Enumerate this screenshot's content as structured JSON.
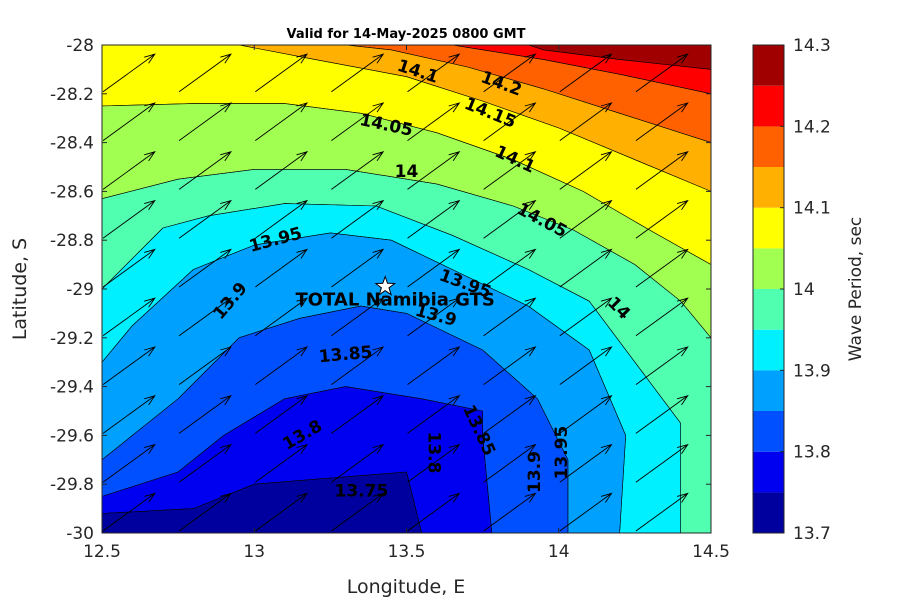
{
  "chart_data": {
    "type": "filled-contour",
    "title": "Valid for 14-May-2025 0800 GMT",
    "xlabel": "Longitude, E",
    "ylabel": "Latitude, S",
    "xlim": [
      12.5,
      14.5
    ],
    "ylim": [
      -30,
      -28
    ],
    "xticks": [
      12.5,
      13,
      13.5,
      14,
      14.5
    ],
    "xtick_labels": [
      "12.5",
      "13",
      "13.5",
      "14",
      "14.5"
    ],
    "yticks": [
      -28,
      -28.2,
      -28.4,
      -28.6,
      -28.8,
      -29,
      -29.2,
      -29.4,
      -29.6,
      -29.8,
      -30
    ],
    "ytick_labels": [
      "-28",
      "-28.2",
      "-28.4",
      "-28.6",
      "-28.8",
      "-29",
      "-29.2",
      "-29.4",
      "-29.6",
      "-29.8",
      "-30"
    ],
    "colorbar": {
      "label": "Wave Period, sec",
      "levels": [
        13.7,
        13.75,
        13.8,
        13.85,
        13.9,
        13.95,
        14,
        14.05,
        14.1,
        14.15,
        14.2,
        14.25,
        14.3
      ],
      "tick_values": [
        13.7,
        13.8,
        13.9,
        14,
        14.1,
        14.2,
        14.3
      ],
      "tick_labels": [
        "13.7",
        "13.8",
        "13.9",
        "14",
        "14.1",
        "14.2",
        "14.3"
      ],
      "colors": [
        "#00009e",
        "#0000f0",
        "#0050ff",
        "#00a0ff",
        "#00f0ff",
        "#50ffb0",
        "#a0ff50",
        "#ffff00",
        "#ffb000",
        "#ff6000",
        "#ff0000",
        "#a00000"
      ]
    },
    "bands": [
      {
        "level": 14.25,
        "color": "#a00000",
        "points": [
          [
            13.9,
            -28
          ],
          [
            14.5,
            -28
          ],
          [
            14.5,
            -28.1
          ],
          [
            14.2,
            -28.06
          ],
          [
            13.95,
            -28.02
          ]
        ]
      },
      {
        "level": 14.2,
        "color": "#ff0000",
        "points": [
          [
            13.65,
            -28
          ],
          [
            13.9,
            -28
          ],
          [
            13.95,
            -28.02
          ],
          [
            14.2,
            -28.06
          ],
          [
            14.5,
            -28.1
          ],
          [
            14.5,
            -28.2
          ],
          [
            14.2,
            -28.12
          ],
          [
            13.95,
            -28.06
          ],
          [
            13.7,
            -28.01
          ]
        ]
      },
      {
        "level": 14.15,
        "color": "#ff6000",
        "points": [
          [
            13.3,
            -28
          ],
          [
            13.65,
            -28
          ],
          [
            13.7,
            -28.01
          ],
          [
            13.95,
            -28.06
          ],
          [
            14.2,
            -28.12
          ],
          [
            14.5,
            -28.2
          ],
          [
            14.5,
            -28.4
          ],
          [
            14.2,
            -28.28
          ],
          [
            13.95,
            -28.18
          ],
          [
            13.7,
            -28.09
          ],
          [
            13.45,
            -28.02
          ]
        ]
      },
      {
        "level": 14.1,
        "color": "#ffb000",
        "points": [
          [
            12.95,
            -28
          ],
          [
            13.3,
            -28
          ],
          [
            13.45,
            -28.02
          ],
          [
            13.7,
            -28.09
          ],
          [
            13.95,
            -28.18
          ],
          [
            14.2,
            -28.28
          ],
          [
            14.5,
            -28.4
          ],
          [
            14.5,
            -28.6
          ],
          [
            14.25,
            -28.47
          ],
          [
            14,
            -28.34
          ],
          [
            13.75,
            -28.23
          ],
          [
            13.5,
            -28.13
          ],
          [
            13.2,
            -28.06
          ]
        ]
      },
      {
        "level": 14.05,
        "color": "#ffff00",
        "points": [
          [
            12.5,
            -28
          ],
          [
            12.95,
            -28
          ],
          [
            13.2,
            -28.06
          ],
          [
            13.5,
            -28.13
          ],
          [
            13.75,
            -28.23
          ],
          [
            14,
            -28.34
          ],
          [
            14.25,
            -28.47
          ],
          [
            14.5,
            -28.6
          ],
          [
            14.5,
            -28.9
          ],
          [
            14.3,
            -28.76
          ],
          [
            14.08,
            -28.6
          ],
          [
            13.85,
            -28.47
          ],
          [
            13.6,
            -28.36
          ],
          [
            13.35,
            -28.28
          ],
          [
            13.1,
            -28.24
          ],
          [
            12.8,
            -28.24
          ],
          [
            12.5,
            -28.25
          ]
        ]
      },
      {
        "level": 14.0,
        "color": "#a0ff50",
        "points": [
          [
            12.5,
            -28.25
          ],
          [
            12.8,
            -28.24
          ],
          [
            13.1,
            -28.24
          ],
          [
            13.35,
            -28.28
          ],
          [
            13.6,
            -28.36
          ],
          [
            13.85,
            -28.47
          ],
          [
            14.08,
            -28.6
          ],
          [
            14.3,
            -28.76
          ],
          [
            14.5,
            -28.9
          ],
          [
            14.5,
            -29.2
          ],
          [
            14.4,
            -29.05
          ],
          [
            14.25,
            -28.9
          ],
          [
            14.05,
            -28.76
          ],
          [
            13.85,
            -28.66
          ],
          [
            13.6,
            -28.57
          ],
          [
            13.3,
            -28.51
          ],
          [
            13.0,
            -28.51
          ],
          [
            12.75,
            -28.55
          ],
          [
            12.5,
            -28.63
          ]
        ]
      },
      {
        "level": 13.95,
        "color": "#50ffb0",
        "points": [
          [
            12.5,
            -28.63
          ],
          [
            12.75,
            -28.55
          ],
          [
            13.0,
            -28.51
          ],
          [
            13.3,
            -28.51
          ],
          [
            13.6,
            -28.57
          ],
          [
            13.85,
            -28.66
          ],
          [
            14.05,
            -28.76
          ],
          [
            14.25,
            -28.9
          ],
          [
            14.4,
            -29.05
          ],
          [
            14.5,
            -29.2
          ],
          [
            14.5,
            -30
          ],
          [
            14.4,
            -30
          ],
          [
            14.4,
            -29.55
          ],
          [
            14.25,
            -29.3
          ],
          [
            14.1,
            -29.05
          ],
          [
            13.9,
            -28.92
          ],
          [
            13.65,
            -28.78
          ],
          [
            13.4,
            -28.66
          ],
          [
            13.1,
            -28.65
          ],
          [
            12.85,
            -28.7
          ],
          [
            12.7,
            -28.75
          ],
          [
            12.5,
            -29.0
          ]
        ]
      },
      {
        "level": 13.9,
        "color": "#00f0ff",
        "points": [
          [
            12.5,
            -29.0
          ],
          [
            12.7,
            -28.75
          ],
          [
            12.85,
            -28.7
          ],
          [
            13.1,
            -28.65
          ],
          [
            13.4,
            -28.66
          ],
          [
            13.65,
            -28.78
          ],
          [
            13.9,
            -28.92
          ],
          [
            14.1,
            -29.05
          ],
          [
            14.25,
            -29.3
          ],
          [
            14.4,
            -29.55
          ],
          [
            14.4,
            -30
          ],
          [
            14.2,
            -30
          ],
          [
            14.22,
            -29.6
          ],
          [
            14.1,
            -29.25
          ],
          [
            13.9,
            -29.07
          ],
          [
            13.65,
            -28.92
          ],
          [
            13.45,
            -28.8
          ],
          [
            13.25,
            -28.77
          ],
          [
            13.0,
            -28.82
          ],
          [
            12.8,
            -28.92
          ],
          [
            12.6,
            -29.15
          ],
          [
            12.5,
            -29.3
          ]
        ]
      },
      {
        "level": 13.85,
        "color": "#00a0ff",
        "points": [
          [
            12.5,
            -29.3
          ],
          [
            12.6,
            -29.15
          ],
          [
            12.8,
            -28.92
          ],
          [
            13.0,
            -28.82
          ],
          [
            13.25,
            -28.77
          ],
          [
            13.45,
            -28.8
          ],
          [
            13.65,
            -28.92
          ],
          [
            13.9,
            -29.07
          ],
          [
            14.1,
            -29.25
          ],
          [
            14.22,
            -29.6
          ],
          [
            14.2,
            -30
          ],
          [
            14.03,
            -30
          ],
          [
            14.03,
            -29.7
          ],
          [
            13.93,
            -29.45
          ],
          [
            13.75,
            -29.25
          ],
          [
            13.5,
            -29.1
          ],
          [
            13.35,
            -29.07
          ],
          [
            13.15,
            -29.12
          ],
          [
            12.95,
            -29.2
          ],
          [
            12.75,
            -29.45
          ],
          [
            12.5,
            -29.7
          ]
        ]
      },
      {
        "level": 13.8,
        "color": "#0050ff",
        "points": [
          [
            12.5,
            -29.7
          ],
          [
            12.75,
            -29.45
          ],
          [
            12.95,
            -29.2
          ],
          [
            13.15,
            -29.12
          ],
          [
            13.35,
            -29.07
          ],
          [
            13.5,
            -29.1
          ],
          [
            13.75,
            -29.25
          ],
          [
            13.93,
            -29.45
          ],
          [
            14.03,
            -29.7
          ],
          [
            14.03,
            -30
          ],
          [
            13.78,
            -30
          ],
          [
            13.75,
            -29.6
          ],
          [
            13.75,
            -29.5
          ],
          [
            13.55,
            -29.45
          ],
          [
            13.3,
            -29.4
          ],
          [
            13.1,
            -29.45
          ],
          [
            12.9,
            -29.6
          ],
          [
            12.75,
            -29.75
          ],
          [
            12.5,
            -29.85
          ]
        ]
      },
      {
        "level": 13.75,
        "color": "#0000f0",
        "points": [
          [
            12.5,
            -29.85
          ],
          [
            12.75,
            -29.75
          ],
          [
            12.9,
            -29.6
          ],
          [
            13.1,
            -29.45
          ],
          [
            13.3,
            -29.4
          ],
          [
            13.55,
            -29.45
          ],
          [
            13.75,
            -29.5
          ],
          [
            13.75,
            -29.6
          ],
          [
            13.78,
            -30
          ],
          [
            13.55,
            -30
          ],
          [
            13.5,
            -29.75
          ],
          [
            13.0,
            -29.8
          ],
          [
            12.8,
            -29.9
          ],
          [
            12.5,
            -29.92
          ]
        ]
      },
      {
        "level": 13.7,
        "color": "#00009e",
        "points": [
          [
            12.5,
            -29.92
          ],
          [
            12.8,
            -29.9
          ],
          [
            13.0,
            -29.8
          ],
          [
            13.5,
            -29.75
          ],
          [
            13.55,
            -30
          ],
          [
            12.5,
            -30
          ]
        ]
      }
    ],
    "contour_labels": [
      {
        "text": "14.2",
        "x": 14.27,
        "y": -28.16,
        "angle": 20
      },
      {
        "text": "14.15",
        "x": 14.22,
        "y": -28.28,
        "angle": 22
      },
      {
        "text": "14.1",
        "x": 13.9,
        "y": -28.11,
        "angle": 18
      },
      {
        "text": "14.1",
        "x": 14.33,
        "y": -28.47,
        "angle": 25
      },
      {
        "text": "14.05",
        "x": 13.76,
        "y": -28.33,
        "angle": 12
      },
      {
        "text": "14.05",
        "x": 14.45,
        "y": -28.72,
        "angle": 28
      },
      {
        "text": "14",
        "x": 13.85,
        "y": -28.52,
        "angle": 0
      },
      {
        "text": "14",
        "x": 14.79,
        "y": -29.08,
        "angle": 45
      },
      {
        "text": "13.95",
        "x": 13.27,
        "y": -28.8,
        "angle": -15
      },
      {
        "text": "13.95",
        "x": 14.11,
        "y": -28.98,
        "angle": 20
      },
      {
        "text": "13.95",
        "x": 14.54,
        "y": -29.67,
        "angle": -90
      },
      {
        "text": "13.9",
        "x": 13.07,
        "y": -29.05,
        "angle": -50
      },
      {
        "text": "13.9",
        "x": 13.98,
        "y": -29.11,
        "angle": 15
      },
      {
        "text": "13.9",
        "x": 14.42,
        "y": -29.75,
        "angle": -90
      },
      {
        "text": "13.85",
        "x": 13.58,
        "y": -29.27,
        "angle": -5
      },
      {
        "text": "13.85",
        "x": 14.17,
        "y": -29.58,
        "angle": 65
      },
      {
        "text": "13.8",
        "x": 13.39,
        "y": -29.6,
        "angle": -30
      },
      {
        "text": "13.8",
        "x": 13.97,
        "y": -29.67,
        "angle": 90
      },
      {
        "text": "13.75",
        "x": 13.65,
        "y": -29.83,
        "angle": 0
      }
    ],
    "site": {
      "label": "TOTAL Namibia GTS",
      "lon": 13.43,
      "lat": -28.99
    },
    "vectors": {
      "direction": "towards north-east",
      "lon": [
        12.5,
        12.75,
        13.0,
        13.25,
        13.5,
        13.75,
        14.0,
        14.25
      ],
      "lat": [
        -28.2,
        -28.4,
        -28.6,
        -28.8,
        -29.0,
        -29.2,
        -29.4,
        -29.6,
        -29.8,
        -30.0
      ]
    }
  }
}
